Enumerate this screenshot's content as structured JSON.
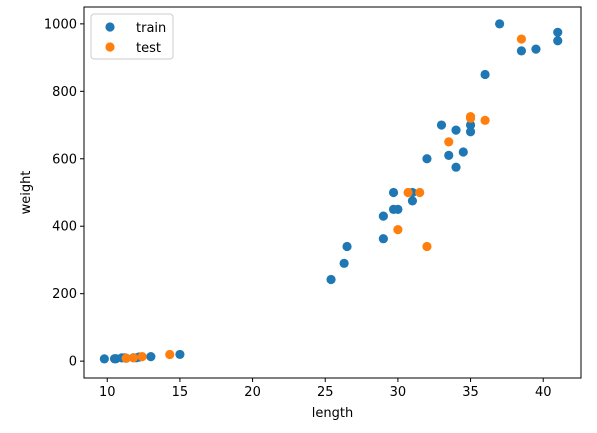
{
  "chart_data": {
    "type": "scatter",
    "title": "",
    "xlabel": "length",
    "ylabel": "weight",
    "xlim": [
      8.4,
      42.6
    ],
    "ylim": [
      -50,
      1050
    ],
    "xticks": [
      10,
      15,
      20,
      25,
      30,
      35,
      40
    ],
    "yticks": [
      0,
      200,
      400,
      600,
      800,
      1000
    ],
    "grid": false,
    "legend_position": "top-left",
    "series": [
      {
        "name": "train",
        "color": "#1f77b4",
        "points": [
          [
            9.8,
            6.7
          ],
          [
            10.5,
            7.0
          ],
          [
            10.6,
            7.0
          ],
          [
            11.0,
            9.7
          ],
          [
            11.2,
            9.8
          ],
          [
            11.3,
            8.7
          ],
          [
            11.8,
            10.0
          ],
          [
            12.0,
            9.9
          ],
          [
            12.2,
            12.2
          ],
          [
            13.0,
            13.4
          ],
          [
            15.0,
            19.9
          ],
          [
            25.4,
            242.0
          ],
          [
            26.3,
            290.0
          ],
          [
            26.5,
            340.0
          ],
          [
            29.0,
            363.0
          ],
          [
            29.0,
            430.0
          ],
          [
            29.7,
            450.0
          ],
          [
            29.7,
            500.0
          ],
          [
            30.0,
            450.0
          ],
          [
            31.0,
            500.0
          ],
          [
            31.0,
            475.0
          ],
          [
            32.0,
            600.0
          ],
          [
            33.0,
            700.0
          ],
          [
            33.5,
            610.0
          ],
          [
            34.0,
            575.0
          ],
          [
            34.0,
            685.0
          ],
          [
            34.5,
            620.0
          ],
          [
            35.0,
            680.0
          ],
          [
            35.0,
            700.0
          ],
          [
            36.0,
            850.0
          ],
          [
            37.0,
            1000.0
          ],
          [
            38.5,
            920.0
          ],
          [
            39.5,
            925.0
          ],
          [
            41.0,
            975.0
          ],
          [
            41.0,
            950.0
          ]
        ]
      },
      {
        "name": "test",
        "color": "#ff7f0e",
        "points": [
          [
            11.3,
            8.7
          ],
          [
            11.8,
            9.9
          ],
          [
            12.4,
            13.4
          ],
          [
            14.3,
            19.7
          ],
          [
            30.0,
            390.0
          ],
          [
            30.7,
            500.0
          ],
          [
            31.5,
            500.0
          ],
          [
            32.0,
            340.0
          ],
          [
            33.5,
            650.0
          ],
          [
            35.0,
            725.0
          ],
          [
            35.0,
            720.0
          ],
          [
            36.0,
            714.0
          ],
          [
            38.5,
            955.0
          ]
        ]
      }
    ]
  }
}
